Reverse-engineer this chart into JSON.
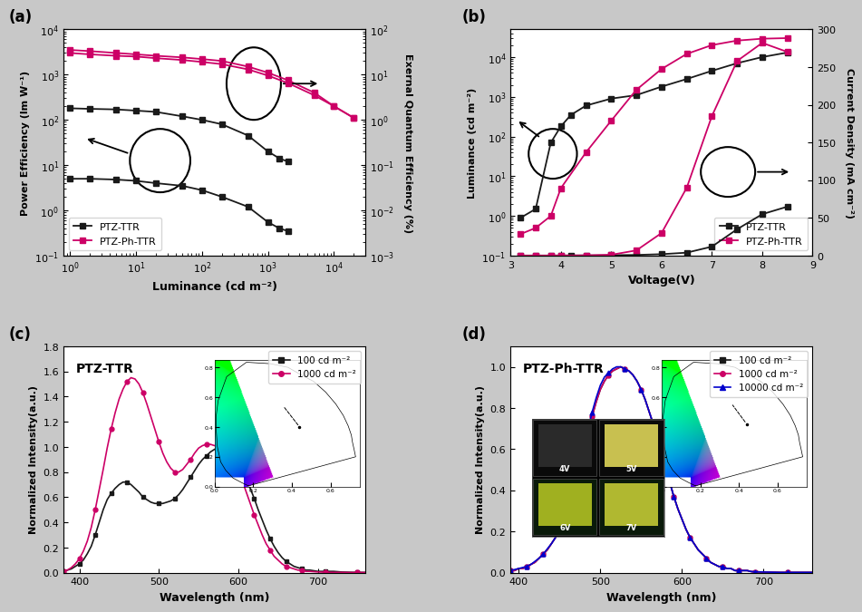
{
  "panel_a": {
    "title": "(a)",
    "xlabel": "Luminance (cd m⁻²)",
    "ylabel_left": "Power Efficiency (lm W⁻¹)",
    "ylabel_right": "Exernal Quantum Efficiency (%)",
    "xlim": [
      0.8,
      30000
    ],
    "ylim_left": [
      0.1,
      10000
    ],
    "ylim_right": [
      0.001,
      100
    ],
    "PTZ_TTR_PE_x": [
      1,
      2,
      5,
      10,
      20,
      50,
      100,
      200,
      500,
      1000,
      1500,
      2000
    ],
    "PTZ_TTR_PE_y": [
      5.0,
      5.0,
      4.8,
      4.5,
      4.0,
      3.5,
      2.8,
      2.0,
      1.2,
      0.55,
      0.4,
      0.35
    ],
    "PTZ_PhTTR_PE_x": [
      1,
      2,
      5,
      10,
      20,
      50,
      100,
      200,
      500,
      1000,
      2000,
      5000,
      10000,
      20000
    ],
    "PTZ_PhTTR_PE_y": [
      3500,
      3300,
      3000,
      2800,
      2600,
      2400,
      2200,
      2000,
      1500,
      1100,
      750,
      400,
      200,
      110
    ],
    "PTZ_TTR_EQE_x": [
      1,
      2,
      5,
      10,
      20,
      50,
      100,
      200,
      500,
      1000,
      1500,
      2000
    ],
    "PTZ_TTR_EQE_y": [
      1.8,
      1.75,
      1.7,
      1.6,
      1.5,
      1.2,
      1.0,
      0.8,
      0.45,
      0.2,
      0.14,
      0.12
    ],
    "PTZ_PhTTR_EQE_x": [
      1,
      2,
      5,
      10,
      20,
      50,
      100,
      200,
      500,
      1000,
      2000,
      5000,
      10000,
      20000
    ],
    "PTZ_PhTTR_EQE_y": [
      30,
      28,
      26,
      25,
      23,
      21,
      19,
      17,
      13,
      9.5,
      6.5,
      3.5,
      2.0,
      1.1
    ],
    "color_black": "#1a1a1a",
    "color_pink": "#cc0066",
    "legend": [
      "PTZ-TTR",
      "PTZ-Ph-TTR"
    ]
  },
  "panel_b": {
    "title": "(b)",
    "xlabel": "Voltage(V)",
    "ylabel_left": "Luminance (cd m⁻²)",
    "ylabel_right": "Current Density (mA cm⁻²)",
    "xlim": [
      3.0,
      9.0
    ],
    "ylim_left": [
      0.1,
      50000
    ],
    "ylim_right": [
      0,
      300
    ],
    "PTZ_TTR_L_x": [
      3.2,
      3.5,
      3.8,
      4.0,
      4.2,
      4.5,
      5.0,
      5.5,
      6.0,
      6.5,
      7.0,
      7.5,
      8.0,
      8.5
    ],
    "PTZ_TTR_L_y": [
      0.9,
      1.5,
      70,
      180,
      350,
      600,
      900,
      1100,
      1800,
      2800,
      4500,
      7000,
      10000,
      13000
    ],
    "PTZ_PhTTR_L_x": [
      3.2,
      3.5,
      3.8,
      4.0,
      4.5,
      5.0,
      5.5,
      6.0,
      6.5,
      7.0,
      7.5,
      8.0,
      8.5
    ],
    "PTZ_PhTTR_L_y": [
      0.35,
      0.5,
      1.0,
      5.0,
      40,
      250,
      1500,
      5000,
      12000,
      20000,
      26000,
      29000,
      30000
    ],
    "PTZ_TTR_CD_x": [
      3.2,
      3.5,
      3.8,
      4.0,
      4.2,
      4.5,
      5.0,
      5.5,
      6.0,
      6.5,
      7.0,
      7.5,
      8.0,
      8.5
    ],
    "PTZ_TTR_CD_y": [
      0.2,
      0.22,
      0.25,
      0.28,
      0.32,
      0.4,
      0.65,
      1.0,
      2.0,
      4.0,
      12,
      35,
      55,
      65
    ],
    "PTZ_PhTTR_CD_x": [
      3.2,
      3.5,
      3.8,
      4.0,
      4.5,
      5.0,
      5.5,
      6.0,
      6.5,
      7.0,
      7.5,
      8.0,
      8.5
    ],
    "PTZ_PhTTR_CD_y": [
      0.18,
      0.2,
      0.22,
      0.25,
      0.4,
      1.2,
      7,
      30,
      90,
      185,
      258,
      282,
      270
    ],
    "color_black": "#1a1a1a",
    "color_pink": "#cc0066",
    "legend": [
      "PTZ-TTR",
      "PTZ-Ph-TTR"
    ]
  },
  "panel_c": {
    "title": "(c)",
    "label_text": "PTZ-TTR",
    "xlabel": "Wavelength (nm)",
    "ylabel": "Normalized Intensity(a.u.)",
    "xlim": [
      380,
      760
    ],
    "ylim": [
      0.0,
      1.8
    ],
    "x_vals": [
      380,
      385,
      390,
      395,
      400,
      405,
      410,
      415,
      420,
      425,
      430,
      435,
      440,
      445,
      450,
      455,
      460,
      465,
      470,
      475,
      480,
      485,
      490,
      495,
      500,
      505,
      510,
      515,
      520,
      525,
      530,
      535,
      540,
      545,
      550,
      555,
      560,
      565,
      570,
      575,
      580,
      585,
      590,
      595,
      600,
      605,
      610,
      615,
      620,
      625,
      630,
      635,
      640,
      645,
      650,
      655,
      660,
      665,
      670,
      675,
      680,
      685,
      690,
      700,
      710,
      720,
      730,
      740,
      750,
      760
    ],
    "y_100": [
      0.01,
      0.02,
      0.03,
      0.05,
      0.07,
      0.1,
      0.15,
      0.21,
      0.3,
      0.4,
      0.5,
      0.58,
      0.63,
      0.67,
      0.7,
      0.72,
      0.72,
      0.7,
      0.67,
      0.64,
      0.6,
      0.58,
      0.56,
      0.55,
      0.55,
      0.55,
      0.56,
      0.57,
      0.59,
      0.62,
      0.66,
      0.71,
      0.76,
      0.81,
      0.86,
      0.9,
      0.93,
      0.96,
      0.98,
      1.0,
      1.0,
      0.99,
      0.97,
      0.93,
      0.88,
      0.82,
      0.75,
      0.67,
      0.59,
      0.5,
      0.42,
      0.34,
      0.27,
      0.21,
      0.16,
      0.12,
      0.09,
      0.07,
      0.05,
      0.04,
      0.03,
      0.02,
      0.02,
      0.01,
      0.01,
      0.01,
      0.005,
      0.003,
      0.002,
      0.002
    ],
    "y_1000": [
      0.01,
      0.02,
      0.04,
      0.07,
      0.11,
      0.17,
      0.25,
      0.36,
      0.5,
      0.66,
      0.82,
      0.99,
      1.14,
      1.27,
      1.38,
      1.46,
      1.52,
      1.55,
      1.54,
      1.5,
      1.43,
      1.34,
      1.24,
      1.14,
      1.04,
      0.95,
      0.88,
      0.83,
      0.8,
      0.8,
      0.82,
      0.86,
      0.9,
      0.95,
      0.99,
      1.01,
      1.02,
      1.02,
      1.01,
      1.0,
      0.99,
      0.97,
      0.93,
      0.88,
      0.81,
      0.73,
      0.64,
      0.55,
      0.46,
      0.38,
      0.3,
      0.23,
      0.18,
      0.13,
      0.1,
      0.07,
      0.05,
      0.04,
      0.03,
      0.02,
      0.02,
      0.01,
      0.01,
      0.005,
      0.003,
      0.002,
      0.002,
      0.001,
      0.001,
      0.001
    ],
    "color_black": "#1a1a1a",
    "color_pink": "#cc0066",
    "legend": [
      "100 cd m⁻²",
      "1000 cd m⁻²"
    ]
  },
  "panel_d": {
    "title": "(d)",
    "label_text": "PTZ-Ph-TTR",
    "xlabel": "Wavelength (nm)",
    "ylabel": "Normalized Intensity(a.u.)",
    "xlim": [
      390,
      760
    ],
    "ylim": [
      0.0,
      1.1
    ],
    "x_vals": [
      390,
      395,
      400,
      405,
      410,
      415,
      420,
      425,
      430,
      435,
      440,
      445,
      450,
      455,
      460,
      465,
      470,
      475,
      480,
      485,
      490,
      495,
      500,
      505,
      510,
      515,
      520,
      525,
      530,
      535,
      540,
      545,
      550,
      555,
      560,
      565,
      570,
      575,
      580,
      585,
      590,
      595,
      600,
      605,
      610,
      615,
      620,
      625,
      630,
      635,
      640,
      645,
      650,
      655,
      660,
      665,
      670,
      675,
      680,
      685,
      690,
      700,
      710,
      720,
      730,
      740,
      750,
      760
    ],
    "y_100": [
      0.01,
      0.01,
      0.02,
      0.02,
      0.03,
      0.04,
      0.05,
      0.07,
      0.09,
      0.11,
      0.14,
      0.17,
      0.21,
      0.25,
      0.31,
      0.37,
      0.44,
      0.52,
      0.6,
      0.68,
      0.76,
      0.83,
      0.89,
      0.93,
      0.96,
      0.98,
      0.99,
      1.0,
      0.99,
      0.98,
      0.96,
      0.93,
      0.89,
      0.84,
      0.78,
      0.72,
      0.65,
      0.58,
      0.51,
      0.44,
      0.37,
      0.31,
      0.26,
      0.21,
      0.17,
      0.14,
      0.11,
      0.09,
      0.07,
      0.05,
      0.04,
      0.03,
      0.03,
      0.02,
      0.02,
      0.01,
      0.01,
      0.01,
      0.01,
      0.005,
      0.004,
      0.003,
      0.002,
      0.001,
      0.001,
      0.001,
      0.001,
      0.001
    ],
    "y_1000": [
      0.01,
      0.01,
      0.02,
      0.02,
      0.03,
      0.04,
      0.05,
      0.07,
      0.09,
      0.11,
      0.14,
      0.17,
      0.21,
      0.25,
      0.31,
      0.37,
      0.44,
      0.52,
      0.6,
      0.68,
      0.76,
      0.83,
      0.89,
      0.93,
      0.96,
      0.98,
      0.99,
      1.0,
      0.99,
      0.98,
      0.96,
      0.93,
      0.89,
      0.84,
      0.78,
      0.72,
      0.65,
      0.58,
      0.51,
      0.44,
      0.37,
      0.31,
      0.26,
      0.21,
      0.17,
      0.14,
      0.11,
      0.09,
      0.07,
      0.05,
      0.04,
      0.03,
      0.03,
      0.02,
      0.02,
      0.01,
      0.01,
      0.01,
      0.01,
      0.005,
      0.004,
      0.003,
      0.002,
      0.001,
      0.001,
      0.001,
      0.001,
      0.001
    ],
    "y_10000": [
      0.01,
      0.015,
      0.02,
      0.025,
      0.03,
      0.04,
      0.055,
      0.07,
      0.09,
      0.115,
      0.14,
      0.17,
      0.21,
      0.26,
      0.32,
      0.38,
      0.46,
      0.54,
      0.62,
      0.7,
      0.78,
      0.85,
      0.91,
      0.95,
      0.97,
      0.99,
      1.0,
      1.0,
      0.99,
      0.98,
      0.96,
      0.93,
      0.89,
      0.84,
      0.78,
      0.72,
      0.65,
      0.58,
      0.51,
      0.44,
      0.37,
      0.31,
      0.26,
      0.21,
      0.17,
      0.14,
      0.11,
      0.09,
      0.07,
      0.05,
      0.04,
      0.03,
      0.03,
      0.02,
      0.02,
      0.01,
      0.01,
      0.01,
      0.01,
      0.005,
      0.004,
      0.003,
      0.002,
      0.001,
      0.001,
      0.001,
      0.001,
      0.001
    ],
    "color_black": "#1a1a1a",
    "color_pink": "#cc0066",
    "color_blue": "#0000cc",
    "legend": [
      "100 cd m⁻²",
      "1000 cd m⁻²",
      "10000 cd m⁻²"
    ]
  },
  "fig_bg": "#c8c8c8"
}
